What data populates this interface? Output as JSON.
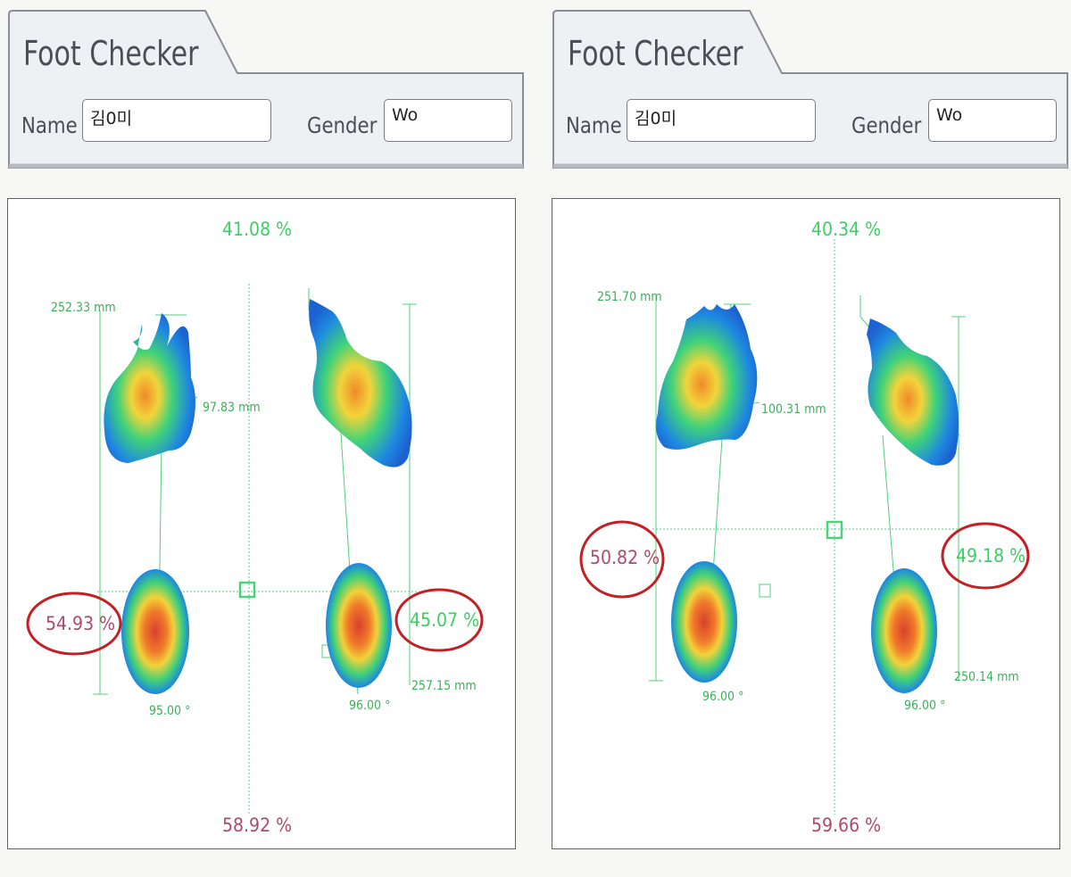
{
  "panels": [
    {
      "title": "Foot Checker",
      "name_label": "Name",
      "name_value": "김0미",
      "gender_label": "Gender",
      "gender_value": "Wo",
      "readings": {
        "forefoot_pct": "41.08 %",
        "rearfoot_pct": "58.92 %",
        "left_pct": "54.93 %",
        "right_pct": "45.07 %",
        "left_length": "252.33 mm",
        "right_length": "257.15 mm",
        "width": "97.83 mm",
        "left_angle": "95.00 °",
        "right_angle": "96.00 °"
      },
      "circled": [
        "left_pct",
        "right_pct"
      ]
    },
    {
      "title": "Foot Checker",
      "name_label": "Name",
      "name_value": "김0미",
      "gender_label": "Gender",
      "gender_value": "Wo",
      "readings": {
        "forefoot_pct": "40.34 %",
        "rearfoot_pct": "59.66 %",
        "left_pct": "50.82 %",
        "right_pct": "49.18 %",
        "left_length": "251.70 mm",
        "right_length": "250.14 mm",
        "width": "100.31 mm",
        "left_angle": "96.00 °",
        "right_angle": "96.00 °"
      },
      "circled": [
        "left_pct",
        "right_pct"
      ]
    }
  ],
  "colors": {
    "guide_line": "#4fd07a",
    "highlight_circle": "#c41f25",
    "header_text": "#4c4e57",
    "heat_low": "#1f6fd8",
    "heat_high": "#e0402a"
  }
}
